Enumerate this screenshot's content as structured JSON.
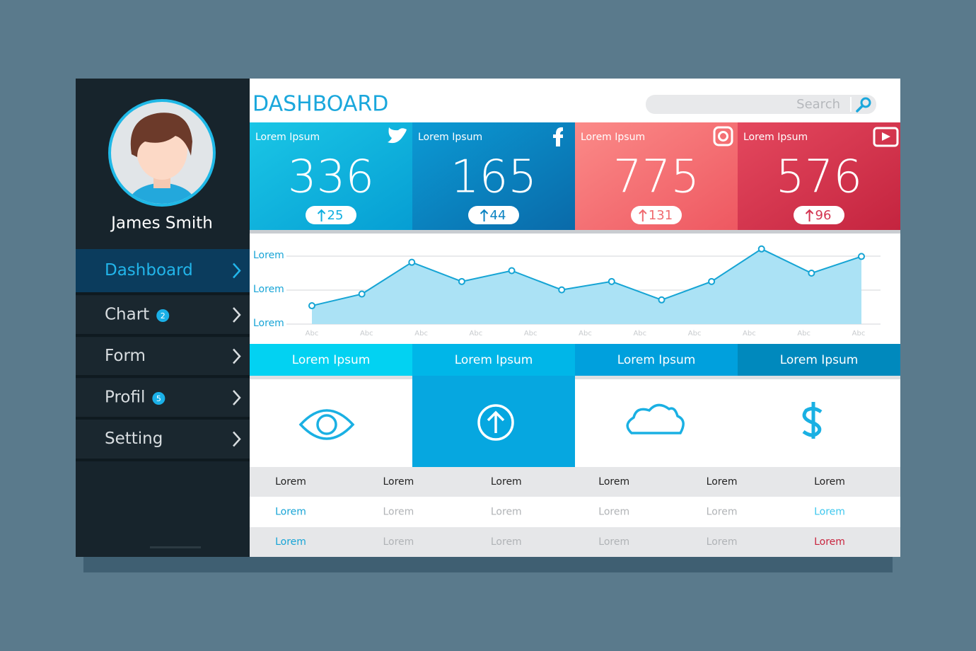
{
  "profile": {
    "name": "James Smith"
  },
  "menu": [
    {
      "label": "Dashboard"
    },
    {
      "label": "Chart",
      "badge": 2
    },
    {
      "label": "Form"
    },
    {
      "label": "Profil",
      "badge": 5
    },
    {
      "label": "Setting"
    }
  ],
  "header": {
    "title": "DASHBOARD",
    "search_placeholder": "Search"
  },
  "stats": [
    {
      "label": "Lorem Ipsum",
      "value": 336,
      "change": 25
    },
    {
      "label": "Lorem Ipsum",
      "value": 165,
      "change": 44
    },
    {
      "label": "Lorem Ipsum",
      "value": 775,
      "change": 131
    },
    {
      "label": "Lorem Ipsum",
      "value": 576,
      "change": 96
    }
  ],
  "chart": {
    "type": "line",
    "y_labels": [
      "Lorem",
      "Lorem",
      "Lorem"
    ],
    "x_labels": [
      "Abc",
      "Abc",
      "Abc",
      "Abc",
      "Abc",
      "Abc",
      "Abc",
      "Abc",
      "Abc",
      "Abc",
      "Abc"
    ],
    "values": [
      22,
      36,
      74,
      51,
      64,
      41,
      51,
      29,
      51,
      90,
      61,
      81
    ],
    "ylim": [
      0,
      100
    ],
    "color": "#15a4d4"
  },
  "tabs": [
    "Lorem Ipsum",
    "Lorem Ipsum",
    "Lorem Ipsum",
    "Lorem Ipsum"
  ],
  "table": {
    "rows": [
      [
        "Lorem",
        "Lorem",
        "Lorem",
        "Lorem",
        "Lorem",
        "Lorem"
      ],
      [
        "Lorem",
        "Lorem",
        "Lorem",
        "Lorem",
        "Lorem",
        "Lorem"
      ],
      [
        "Lorem",
        "Lorem",
        "Lorem",
        "Lorem",
        "Lorem",
        "Lorem"
      ]
    ]
  }
}
